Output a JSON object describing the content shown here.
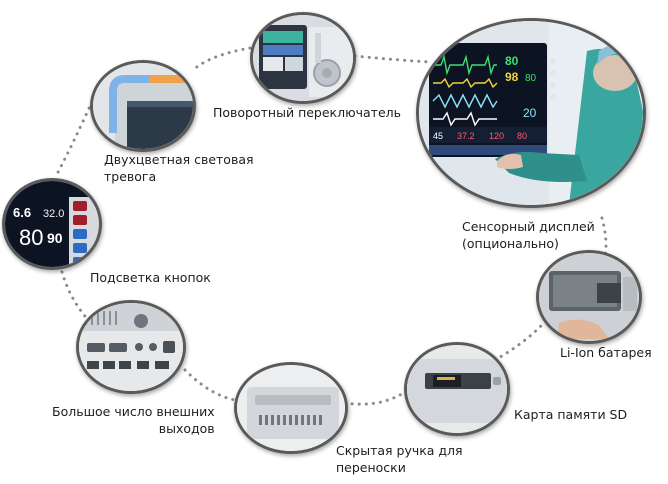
{
  "features": [
    {
      "id": "rotary-knob",
      "label": "Поворотный переключатель"
    },
    {
      "id": "dual-color-alarm",
      "label_lines": [
        "Двухцветная световая",
        "тревога"
      ]
    },
    {
      "id": "button-backlight",
      "label": "Подсветка кнопок"
    },
    {
      "id": "many-outputs",
      "label_lines": [
        "Большое число внешних",
        "выходов"
      ]
    },
    {
      "id": "hidden-handle",
      "label_lines": [
        "Скрытая ручка для",
        "переноски"
      ]
    },
    {
      "id": "sd-card",
      "label": "Карта памяти SD"
    },
    {
      "id": "li-ion-battery",
      "label": "Li-Ion батарея"
    },
    {
      "id": "touch-display",
      "label_lines": [
        "Сенсорный дисплей",
        "(опционально)"
      ]
    }
  ],
  "screen_values": {
    "backlight_left": "6.6",
    "backlight_mid": "32.0",
    "backlight_big1": "80",
    "backlight_big2": "90",
    "monitor_v1": "80",
    "monitor_v2": "98",
    "monitor_v3": "80",
    "monitor_v4": "20",
    "monitor_bottom1": "45",
    "monitor_bottom2": "37.2",
    "monitor_bottom3": "120",
    "monitor_bottom4": "80"
  },
  "colors": {
    "circle_border": "#5a5a5a",
    "dots": "#8a8a8a",
    "screen_bg": "#0c1424",
    "alarm_orange": "#f0a24a",
    "alarm_blue": "#7fb3e8"
  }
}
